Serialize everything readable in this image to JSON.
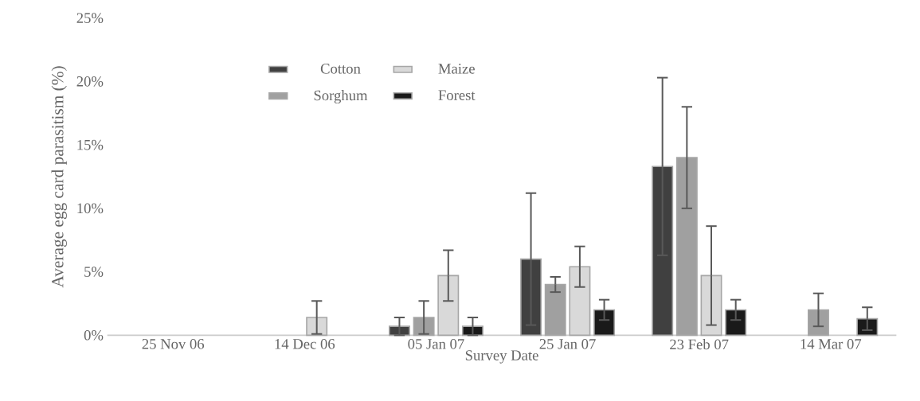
{
  "chart_data": {
    "type": "bar",
    "xlabel": "Survey Date",
    "ylabel": "Average egg card parasitism (%)",
    "categories": [
      "25 Nov 06",
      "14 Dec 06",
      "05 Jan 07",
      "25 Jan 07",
      "23 Feb 07",
      "14 Mar 07"
    ],
    "series": [
      {
        "name": "Cotton",
        "color": "#404040",
        "values": [
          null,
          null,
          0.7,
          6.0,
          13.3,
          null
        ],
        "errors": [
          null,
          null,
          0.7,
          5.2,
          7.0,
          null
        ]
      },
      {
        "name": "Sorghum",
        "color": "#a0a0a0",
        "values": [
          null,
          null,
          1.4,
          4.0,
          14.0,
          2.0
        ],
        "errors": [
          null,
          null,
          1.3,
          0.6,
          4.0,
          1.3
        ]
      },
      {
        "name": "Maize",
        "color": "#d9d9d9",
        "values": [
          null,
          1.4,
          4.7,
          5.4,
          4.7,
          null
        ],
        "errors": [
          null,
          1.3,
          2.0,
          1.6,
          3.9,
          null
        ]
      },
      {
        "name": "Forest",
        "color": "#1a1a1a",
        "values": [
          null,
          null,
          0.7,
          2.0,
          2.0,
          1.3
        ],
        "errors": [
          null,
          null,
          0.7,
          0.8,
          0.8,
          0.9
        ]
      }
    ],
    "ylim": [
      0,
      25
    ],
    "yticks": [
      {
        "value": 0,
        "label": "0%"
      },
      {
        "value": 5,
        "label": "5%"
      },
      {
        "value": 10,
        "label": "10%"
      },
      {
        "value": 15,
        "label": "15%"
      },
      {
        "value": 20,
        "label": "20%"
      },
      {
        "value": 25,
        "label": "25%"
      }
    ],
    "grid": false,
    "legend": "top left"
  }
}
